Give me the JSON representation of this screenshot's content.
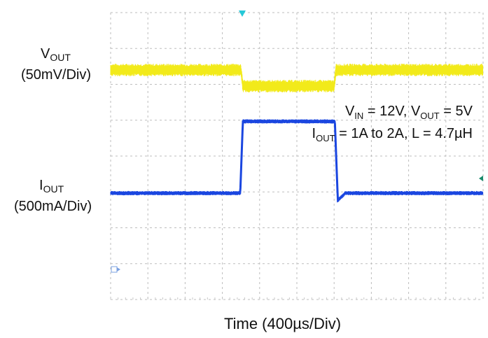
{
  "labels": {
    "vout_main": "V",
    "vout_sub": "OUT",
    "vout_scale": "(50mV/Div)",
    "iout_main": "I",
    "iout_sub": "OUT",
    "iout_scale": "(500mA/Div)",
    "cond1_a": "V",
    "cond1_a_sub": "IN",
    "cond1_b": " = 12V, V",
    "cond1_b_sub": "OUT",
    "cond1_c": " = 5V",
    "cond2_a": "I",
    "cond2_a_sub": "OUT",
    "cond2_b": " = 1A to 2A, L = 4.7µH",
    "time_axis": "Time (400µs/Div)"
  },
  "chart_data": {
    "type": "line",
    "time_per_div_us": 400,
    "divisions_x": 10,
    "divisions_y": 8,
    "grid": true,
    "series": [
      {
        "name": "VOUT",
        "scale": "50mV/Div",
        "color": "#f2ea1a",
        "unit_per_div": 50,
        "unit": "mV",
        "points_div": [
          [
            0,
            0
          ],
          [
            3.5,
            0
          ],
          [
            3.55,
            -0.45
          ],
          [
            6.0,
            -0.45
          ],
          [
            6.05,
            0
          ],
          [
            10,
            0
          ]
        ],
        "noise_div": 0.35
      },
      {
        "name": "IOUT",
        "scale": "500mA/Div",
        "color": "#1a46e0",
        "unit_per_div": 500,
        "unit": "mA",
        "points_div": [
          [
            0,
            0
          ],
          [
            3.48,
            0
          ],
          [
            3.55,
            2.0
          ],
          [
            6.02,
            2.0
          ],
          [
            6.1,
            -0.2
          ],
          [
            6.3,
            0
          ],
          [
            10,
            0
          ]
        ],
        "noise_div": 0.12
      }
    ]
  }
}
